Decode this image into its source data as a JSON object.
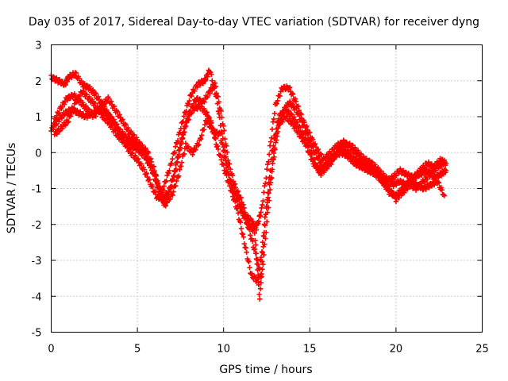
{
  "chart_data": {
    "type": "scatter",
    "title": "Day 035 of 2017, Sidereal Day-to-day VTEC variation (SDTVAR) for receiver dyng",
    "xlabel": "GPS time / hours",
    "ylabel": "SDTVAR / TECUs",
    "xlim": [
      0,
      25
    ],
    "ylim": [
      -5,
      3
    ],
    "x_ticks": [
      0,
      5,
      10,
      15,
      20,
      25
    ],
    "y_ticks": [
      -5,
      -4,
      -3,
      -2,
      -1,
      0,
      1,
      2,
      3
    ],
    "grid": true,
    "marker": "plus",
    "series": [
      {
        "color": "#ff0000",
        "x": [
          0.0,
          0.4,
          0.8,
          1.2,
          1.6,
          2.0,
          2.4,
          2.8,
          3.2,
          3.6,
          4.0,
          4.4,
          4.8,
          5.2,
          5.6,
          6.0,
          6.3,
          6.6,
          7.0,
          7.4,
          7.8,
          8.2,
          8.6,
          9.0,
          9.3,
          9.6,
          10.0,
          10.4,
          10.8,
          11.2,
          11.6,
          12.0,
          12.4,
          12.8,
          13.2,
          13.6,
          14.0,
          14.4,
          14.8,
          15.2,
          15.6,
          16.0,
          16.4,
          16.8,
          17.2,
          17.6,
          18.0,
          18.4,
          18.8,
          19.2,
          19.6,
          20.0,
          20.4,
          20.8,
          21.2,
          21.6,
          22.0,
          22.4,
          22.8
        ],
        "y": [
          0.6,
          0.9,
          1.1,
          1.2,
          1.1,
          1.0,
          1.1,
          1.2,
          1.1,
          0.9,
          0.6,
          0.4,
          0.3,
          0.2,
          0.0,
          -0.5,
          -1.1,
          -1.5,
          -0.9,
          0.0,
          0.8,
          1.2,
          1.3,
          1.1,
          0.8,
          0.2,
          -0.4,
          -1.0,
          -1.6,
          -2.5,
          -3.4,
          -3.6,
          -2.0,
          0.0,
          1.0,
          1.2,
          1.0,
          0.7,
          0.3,
          -0.2,
          -0.6,
          -0.4,
          -0.1,
          0.1,
          0.0,
          -0.2,
          -0.3,
          -0.4,
          -0.5,
          -0.8,
          -1.1,
          -1.2,
          -1.0,
          -0.8,
          -0.9,
          -1.0,
          -0.9,
          -0.8,
          -1.2
        ]
      },
      {
        "color": "#ff0000",
        "x": [
          0.0,
          0.4,
          0.8,
          1.0,
          1.4,
          1.8,
          2.2,
          2.6,
          3.0,
          3.4,
          3.8,
          4.2,
          4.6,
          5.0,
          5.4,
          5.8,
          6.2,
          6.5,
          6.9,
          7.3,
          7.7,
          8.1,
          8.5,
          8.9,
          9.2,
          9.6,
          10.0,
          10.4,
          10.8,
          11.2,
          11.6,
          11.9,
          12.2,
          12.6,
          13.0,
          13.4,
          13.8,
          14.2,
          14.6,
          15.0,
          15.4,
          15.8,
          16.2,
          16.6,
          17.0,
          17.4,
          17.8,
          18.2,
          18.6,
          19.0,
          19.4,
          19.8,
          20.2,
          20.6,
          21.0,
          21.4,
          21.8,
          22.2,
          22.6,
          22.9
        ],
        "y": [
          2.1,
          2.0,
          1.9,
          2.1,
          2.2,
          1.9,
          1.8,
          1.6,
          1.3,
          1.0,
          0.7,
          0.3,
          0.0,
          -0.2,
          -0.5,
          -0.9,
          -1.3,
          -1.0,
          -0.4,
          0.3,
          1.0,
          1.6,
          1.9,
          2.0,
          2.3,
          1.5,
          0.2,
          -0.8,
          -1.2,
          -1.7,
          -1.9,
          -2.1,
          -1.6,
          -0.2,
          1.3,
          1.8,
          1.8,
          1.4,
          0.9,
          0.5,
          0.1,
          -0.2,
          0.0,
          0.2,
          0.3,
          0.1,
          -0.1,
          -0.3,
          -0.4,
          -0.6,
          -0.8,
          -0.7,
          -0.5,
          -0.6,
          -0.7,
          -0.5,
          -0.3,
          -0.4,
          -0.2,
          -0.3
        ]
      },
      {
        "color": "#ff0000",
        "x": [
          0.1,
          0.5,
          0.9,
          1.3,
          1.7,
          2.1,
          2.5,
          2.9,
          3.3,
          3.7,
          4.1,
          4.5,
          4.9,
          5.3,
          5.7,
          6.1,
          6.4,
          6.8,
          7.2,
          7.6,
          8.0,
          8.4,
          8.8,
          9.2,
          9.5,
          9.9,
          10.3,
          10.7,
          11.1,
          11.5,
          11.9,
          12.2,
          12.6,
          13.0,
          13.4,
          13.8,
          14.2,
          14.6,
          15.0,
          15.4,
          15.8,
          16.2,
          16.6,
          17.0,
          17.4,
          17.8,
          18.2,
          18.6,
          19.0,
          19.4,
          19.8,
          20.2,
          20.6,
          21.0,
          21.4,
          21.8,
          22.2,
          22.6,
          22.9
        ],
        "y": [
          0.8,
          1.2,
          1.5,
          1.6,
          1.4,
          1.2,
          1.0,
          1.3,
          1.5,
          1.2,
          0.9,
          0.6,
          0.4,
          0.1,
          -0.3,
          -0.8,
          -1.3,
          -1.1,
          -0.5,
          0.4,
          1.1,
          1.5,
          1.4,
          1.7,
          1.9,
          1.0,
          -0.3,
          -1.0,
          -1.4,
          -2.2,
          -2.9,
          -3.5,
          -1.5,
          0.4,
          1.1,
          1.4,
          1.2,
          0.8,
          0.3,
          -0.1,
          -0.4,
          -0.3,
          0.0,
          0.2,
          0.2,
          0.0,
          -0.2,
          -0.3,
          -0.5,
          -0.7,
          -0.9,
          -0.8,
          -0.9,
          -0.7,
          -0.6,
          -0.5,
          -0.7,
          -0.6,
          -0.5
        ]
      },
      {
        "color": "#ff0000",
        "x": [
          0.2,
          0.6,
          1.0,
          1.4,
          1.8,
          2.2,
          2.6,
          3.0,
          3.4,
          3.8,
          4.2,
          4.6,
          5.0,
          5.4,
          5.8,
          6.2,
          6.6,
          7.0,
          7.4,
          7.8,
          8.2,
          8.6,
          9.0,
          9.4,
          9.8,
          10.2,
          10.6,
          11.0,
          11.4,
          11.8,
          12.1,
          12.4,
          12.8,
          13.2,
          13.6,
          14.0,
          14.4,
          14.8,
          15.2,
          15.6,
          16.0,
          16.4,
          16.8,
          17.2,
          17.6,
          18.0,
          18.4,
          18.8,
          19.2,
          19.6,
          20.0,
          20.4,
          20.8,
          21.2,
          21.6,
          22.0,
          22.4,
          22.8
        ],
        "y": [
          0.5,
          0.7,
          0.9,
          1.4,
          1.7,
          1.5,
          1.3,
          1.0,
          0.8,
          0.5,
          0.3,
          0.2,
          0.1,
          -0.1,
          -0.4,
          -0.9,
          -1.4,
          -1.2,
          -0.6,
          0.2,
          0.0,
          0.3,
          0.9,
          0.6,
          0.5,
          -0.5,
          -1.2,
          -1.6,
          -2.0,
          -2.2,
          -4.1,
          -1.8,
          -0.5,
          0.8,
          1.0,
          0.8,
          0.5,
          0.2,
          -0.3,
          -0.5,
          -0.3,
          -0.1,
          0.0,
          -0.1,
          -0.3,
          -0.4,
          -0.5,
          -0.6,
          -0.8,
          -1.0,
          -1.3,
          -1.1,
          -0.9,
          -1.0,
          -0.8,
          -0.6,
          -0.4,
          -0.3
        ]
      }
    ]
  }
}
